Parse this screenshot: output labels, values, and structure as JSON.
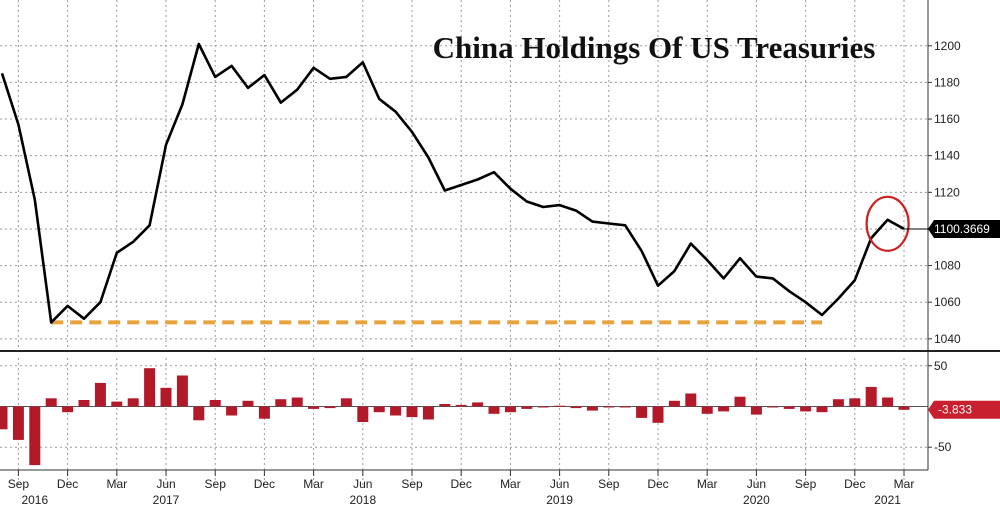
{
  "chart_data": [
    {
      "type": "line",
      "title": "China Holdings Of US Treasuries",
      "xlabel": "",
      "ylabel": "",
      "ylim": [
        1035,
        1225
      ],
      "yticks": [
        "1040",
        "1060",
        "1080",
        "1100",
        "1120",
        "1140",
        "1160",
        "1180",
        "1200"
      ],
      "grid": true,
      "x": [
        "2016-08",
        "2016-09",
        "2016-10",
        "2016-11",
        "2016-12",
        "2017-01",
        "2017-02",
        "2017-03",
        "2017-04",
        "2017-05",
        "2017-06",
        "2017-07",
        "2017-08",
        "2017-09",
        "2017-10",
        "2017-11",
        "2017-12",
        "2018-01",
        "2018-02",
        "2018-03",
        "2018-04",
        "2018-05",
        "2018-06",
        "2018-07",
        "2018-08",
        "2018-09",
        "2018-10",
        "2018-11",
        "2018-12",
        "2019-01",
        "2019-02",
        "2019-03",
        "2019-04",
        "2019-05",
        "2019-06",
        "2019-07",
        "2019-08",
        "2019-09",
        "2019-10",
        "2019-11",
        "2019-12",
        "2020-01",
        "2020-02",
        "2020-03",
        "2020-04",
        "2020-05",
        "2020-06",
        "2020-07",
        "2020-08",
        "2020-09",
        "2020-10",
        "2020-11",
        "2020-12",
        "2021-01",
        "2021-02",
        "2021-03"
      ],
      "series": [
        {
          "values": [
            1185,
            1157,
            1116,
            1049,
            1058,
            1051,
            1060,
            1087,
            1093,
            1102,
            1146,
            1168,
            1201,
            1183,
            1189,
            1177,
            1184,
            1169,
            1176,
            1188,
            1182,
            1183,
            1191,
            1171,
            1164,
            1153,
            1139,
            1121,
            1124,
            1127,
            1131,
            1122,
            1115,
            1112,
            1113,
            1110,
            1104,
            1103,
            1102,
            1088,
            1069,
            1077,
            1092,
            1083,
            1073,
            1084,
            1074,
            1073,
            1066,
            1060,
            1053,
            1062,
            1072,
            1095,
            1105,
            1100
          ]
        }
      ],
      "last_value_label": "1100.3669",
      "reference_line": {
        "value": 1049,
        "from": "2016-11",
        "to": "2020-10",
        "style": "dashed",
        "color": "#e8a33c"
      },
      "highlight_circle_at": "2021-02",
      "colors": {
        "line": "#000000",
        "reference": "#e8a33c",
        "circle": "#cc2222",
        "label_bg": "#000000",
        "label_text": "#ffffff"
      }
    },
    {
      "type": "bar",
      "ylim": [
        -78,
        62
      ],
      "yticks": [
        "50",
        "-50"
      ],
      "grid": true,
      "x": [
        "2016-08",
        "2016-09",
        "2016-10",
        "2016-11",
        "2016-12",
        "2017-01",
        "2017-02",
        "2017-03",
        "2017-04",
        "2017-05",
        "2017-06",
        "2017-07",
        "2017-08",
        "2017-09",
        "2017-10",
        "2017-11",
        "2017-12",
        "2018-01",
        "2018-02",
        "2018-03",
        "2018-04",
        "2018-05",
        "2018-06",
        "2018-07",
        "2018-08",
        "2018-09",
        "2018-10",
        "2018-11",
        "2018-12",
        "2019-01",
        "2019-02",
        "2019-03",
        "2019-04",
        "2019-05",
        "2019-06",
        "2019-07",
        "2019-08",
        "2019-09",
        "2019-10",
        "2019-11",
        "2019-12",
        "2020-01",
        "2020-02",
        "2020-03",
        "2020-04",
        "2020-05",
        "2020-06",
        "2020-07",
        "2020-08",
        "2020-09",
        "2020-10",
        "2020-11",
        "2020-12",
        "2021-01",
        "2021-02",
        "2021-03"
      ],
      "series": [
        {
          "values": [
            -28,
            -41,
            -72,
            10,
            -7,
            8,
            29,
            6,
            10,
            47,
            23,
            38,
            -17,
            8,
            -11,
            7,
            -15,
            9,
            11,
            -3,
            -2,
            10,
            -19,
            -7,
            -11,
            -13,
            -16,
            3,
            2,
            5,
            -9,
            -7,
            -3,
            -1,
            1,
            -2,
            -5,
            -1,
            -1,
            -14,
            -20,
            7,
            16,
            -9,
            -6,
            12,
            -10,
            -1,
            -3,
            -6,
            -7,
            9,
            10,
            24,
            11,
            -4
          ]
        }
      ],
      "last_value_label": "-3.833",
      "colors": {
        "bar": "#b21a2a",
        "label_bg": "#c8202e",
        "label_text": "#ffffff"
      }
    }
  ],
  "x_axis": {
    "ticks": [
      {
        "label": "Sep",
        "month": "2016-09"
      },
      {
        "label": "Dec",
        "month": "2016-12"
      },
      {
        "label": "Mar",
        "month": "2017-03"
      },
      {
        "label": "Jun",
        "month": "2017-06"
      },
      {
        "label": "Sep",
        "month": "2017-09"
      },
      {
        "label": "Dec",
        "month": "2017-12"
      },
      {
        "label": "Mar",
        "month": "2018-03"
      },
      {
        "label": "Jun",
        "month": "2018-06"
      },
      {
        "label": "Sep",
        "month": "2018-09"
      },
      {
        "label": "Dec",
        "month": "2018-12"
      },
      {
        "label": "Mar",
        "month": "2019-03"
      },
      {
        "label": "Jun",
        "month": "2019-06"
      },
      {
        "label": "Sep",
        "month": "2019-09"
      },
      {
        "label": "Dec",
        "month": "2019-12"
      },
      {
        "label": "Mar",
        "month": "2020-03"
      },
      {
        "label": "Jun",
        "month": "2020-06"
      },
      {
        "label": "Sep",
        "month": "2020-09"
      },
      {
        "label": "Dec",
        "month": "2020-12"
      },
      {
        "label": "Mar",
        "month": "2021-03"
      }
    ],
    "years": [
      {
        "label": "2016",
        "month": "2016-10"
      },
      {
        "label": "2017",
        "month": "2017-06"
      },
      {
        "label": "2018",
        "month": "2018-06"
      },
      {
        "label": "2019",
        "month": "2019-06"
      },
      {
        "label": "2020",
        "month": "2020-06"
      },
      {
        "label": "2021",
        "month": "2021-02"
      }
    ]
  }
}
